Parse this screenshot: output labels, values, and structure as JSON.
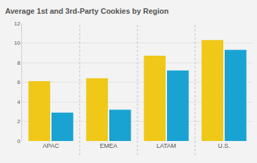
{
  "chart_data": {
    "type": "bar",
    "title": "Average 1st and 3rd-Party Cookies by Region",
    "categories": [
      "APAC",
      "EMEA",
      "LATAM",
      "U.S."
    ],
    "series": [
      {
        "color": "#efc818",
        "values": [
          6.1,
          6.4,
          8.7,
          10.3
        ]
      },
      {
        "color": "#19a3d3",
        "values": [
          2.9,
          3.2,
          7.2,
          9.3
        ]
      }
    ],
    "ylim": [
      0,
      12
    ],
    "yticks": [
      0,
      2,
      4,
      6,
      8,
      10,
      12
    ],
    "grid": true
  }
}
